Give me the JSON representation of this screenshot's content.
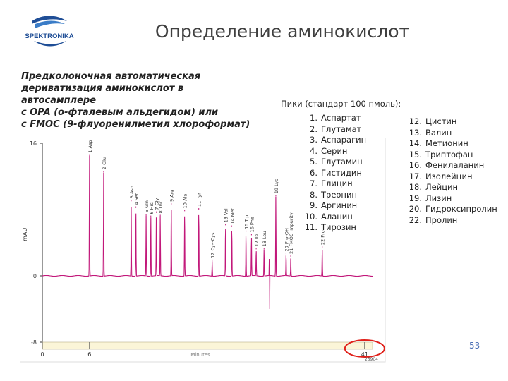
{
  "logo": {
    "text": "SPEKTRONIKA"
  },
  "title": "Определение аминокислот",
  "description": [
    "Предколоночная автоматическая",
    "дериватизация  аминокислот в",
    "автосамплере",
    "с OPA (о-фталевым альдегидом) или",
    "с FMOC (9-флуоренилметил хлороформат)"
  ],
  "peaks_header": "Пики (стандарт 100 пмоль):",
  "peaks_col1": [
    {
      "num": "1.",
      "name": "Аспартат"
    },
    {
      "num": "2.",
      "name": "Глутамат"
    },
    {
      "num": "3.",
      "name": "Аспарагин"
    },
    {
      "num": "4.",
      "name": "Серин"
    },
    {
      "num": "5.",
      "name": "Глутамин"
    },
    {
      "num": "6.",
      "name": "Гистидин"
    },
    {
      "num": "7.",
      "name": "Глицин"
    },
    {
      "num": "8.",
      "name": "Треонин"
    },
    {
      "num": "9.",
      "name": "Аргинин"
    },
    {
      "num": "10.",
      "name": "Аланин"
    },
    {
      "num": "11.",
      "name": "Тирозин"
    }
  ],
  "peaks_col2": [
    {
      "num": "12.",
      "name": "Цистин"
    },
    {
      "num": "13.",
      "name": "Валин"
    },
    {
      "num": "14.",
      "name": "Метионин"
    },
    {
      "num": "15.",
      "name": "Триптофан"
    },
    {
      "num": "16.",
      "name": "Фенилаланин"
    },
    {
      "num": "17.",
      "name": "Изолейцин"
    },
    {
      "num": "18.",
      "name": "Лейцин"
    },
    {
      "num": "19.",
      "name": "Лизин"
    },
    {
      "num": "20.",
      "name": "Гидроксипролин"
    },
    {
      "num": "22.",
      "name": "Пролин"
    }
  ],
  "page_number": "53",
  "colors": {
    "trace": "#c2187a",
    "axis": "#333333",
    "highlight": "#e0201a",
    "page": "#4a6fb5"
  },
  "chart_data": {
    "type": "line",
    "title": "",
    "xlabel": "Minutes",
    "ylabel": "mAU",
    "xlim": [
      0,
      42
    ],
    "ylim": [
      -8,
      16
    ],
    "x_ticks": [
      0,
      6,
      41
    ],
    "x_tick_labels": [
      "0",
      "6",
      "41"
    ],
    "y_ticks": [
      16,
      0,
      -8
    ],
    "y_tick_labels": [
      "16",
      "0",
      "-8"
    ],
    "highlighted_tick": "41",
    "footnote": "25904",
    "baseline_disturbance": {
      "x": 28.9,
      "min": -4,
      "max": 2
    },
    "peaks": [
      {
        "label": "1 Asp",
        "time": 6.0,
        "height": 14.5
      },
      {
        "label": "2 Glu",
        "time": 7.8,
        "height": 12.5
      },
      {
        "label": "3 Asn",
        "time": 11.3,
        "height": 9.0
      },
      {
        "label": "4 Ser",
        "time": 11.9,
        "height": 8.2
      },
      {
        "label": "5 Gln",
        "time": 13.2,
        "height": 7.3
      },
      {
        "label": "6 His",
        "time": 13.8,
        "height": 7.1
      },
      {
        "label": "7 Gly",
        "time": 14.5,
        "height": 7.6
      },
      {
        "label": "8 Thr",
        "time": 15.0,
        "height": 7.2
      },
      {
        "label": "9 Arg",
        "time": 16.4,
        "height": 8.6
      },
      {
        "label": "10 Ala",
        "time": 18.1,
        "height": 7.8
      },
      {
        "label": "11 Tyr",
        "time": 19.9,
        "height": 8.0
      },
      {
        "label": "12 Cys-Cys",
        "time": 21.6,
        "height": 1.8
      },
      {
        "label": "13 Val",
        "time": 23.3,
        "height": 6.1
      },
      {
        "label": "14 Met",
        "time": 24.1,
        "height": 5.9
      },
      {
        "label": "15 Trp",
        "time": 25.9,
        "height": 5.3
      },
      {
        "label": "16 Phe",
        "time": 26.6,
        "height": 4.9
      },
      {
        "label": "17 Ile",
        "time": 27.2,
        "height": 3.2
      },
      {
        "label": "18 Leu",
        "time": 28.2,
        "height": 3.2
      },
      {
        "label": "19 Lys",
        "time": 29.7,
        "height": 9.6
      },
      {
        "label": "20 Pro-OH",
        "time": 31.0,
        "height": 2.6
      },
      {
        "label": "21 FMOC impurity",
        "time": 31.6,
        "height": 2.3
      },
      {
        "label": "22 Pro",
        "time": 35.6,
        "height": 3.4
      }
    ]
  }
}
